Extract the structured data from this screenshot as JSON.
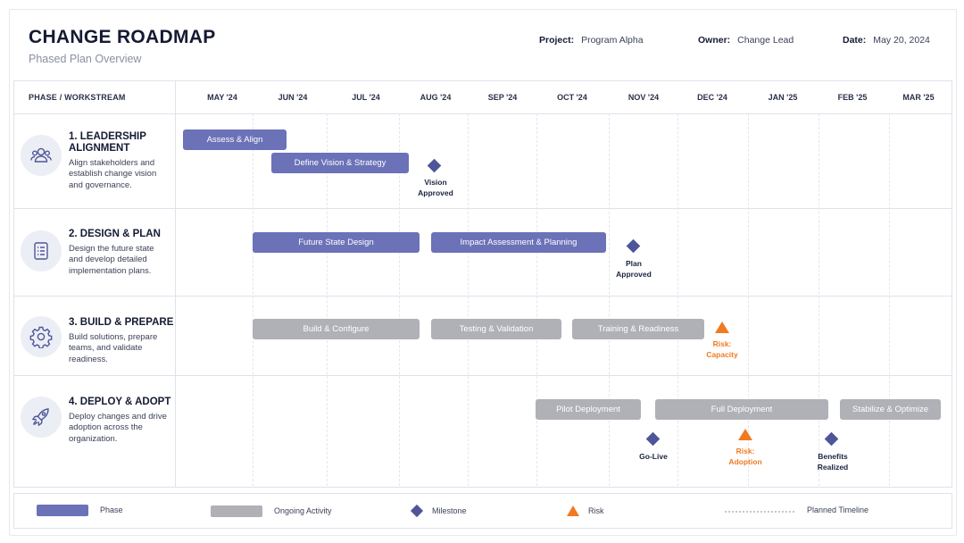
{
  "header": {
    "title": "CHANGE ROADMAP",
    "subtitle": "Phased Plan Overview",
    "project_label": "Project:",
    "project_value": "Program Alpha",
    "owner_label": "Owner:",
    "owner_value": "Change Lead",
    "date_label": "Date:",
    "date_value": "May 20, 2024"
  },
  "table": {
    "phase_header": "PHASE / WORKSTREAM",
    "months": [
      "MAY '24",
      "JUN '24",
      "JUL '24",
      "AUG '24",
      "SEP '24",
      "OCT '24",
      "NOV '24",
      "DEC '24",
      "JAN '25",
      "FEB '25",
      "MAR '25"
    ]
  },
  "phases": [
    {
      "title_line1": "1. LEADERSHIP",
      "title_line2": "ALIGNMENT",
      "desc": "Align stakeholders and establish change vision and governance.",
      "icon": "people-icon"
    },
    {
      "title_line1": "2. DESIGN & PLAN",
      "title_line2": "",
      "desc": "Design the future state and develop detailed implementation plans.",
      "icon": "checklist-icon"
    },
    {
      "title_line1": "3. BUILD & PREPARE",
      "title_line2": "",
      "desc": "Build solutions, prepare teams, and validate readiness.",
      "icon": "gear-icon"
    },
    {
      "title_line1": "4. DEPLOY & ADOPT",
      "title_line2": "",
      "desc": "Deploy changes and drive adoption across the organization.",
      "icon": "rocket-icon"
    }
  ],
  "activities": [
    {
      "label": "Assess & Align",
      "type": "phase",
      "phase": 1
    },
    {
      "label": "Define Vision & Strategy",
      "type": "phase",
      "phase": 1
    },
    {
      "label": "Future State Design",
      "type": "phase",
      "phase": 2
    },
    {
      "label": "Impact Assessment & Planning",
      "type": "phase",
      "phase": 2
    },
    {
      "label": "Build & Configure",
      "type": "ongoing",
      "phase": 3
    },
    {
      "label": "Testing & Validation",
      "type": "ongoing",
      "phase": 3
    },
    {
      "label": "Training & Readiness",
      "type": "ongoing",
      "phase": 3
    },
    {
      "label": "Pilot Deployment",
      "type": "ongoing",
      "phase": 4
    },
    {
      "label": "Full Deployment",
      "type": "ongoing",
      "phase": 4
    },
    {
      "label": "Stabilize & Optimize",
      "type": "ongoing",
      "phase": 4
    }
  ],
  "milestones": [
    {
      "line1": "Vision",
      "line2": "Approved"
    },
    {
      "line1": "Plan",
      "line2": "Approved"
    },
    {
      "line1": "Go-Live",
      "line2": ""
    },
    {
      "line1": "Benefits",
      "line2": "Realized"
    }
  ],
  "risks": [
    {
      "line1": "Risk:",
      "line2": "Capacity"
    },
    {
      "line1": "Risk:",
      "line2": "Adoption"
    }
  ],
  "legend": {
    "phase": "Phase",
    "ongoing": "Ongoing Activity",
    "milestone": "Milestone",
    "risk": "Risk",
    "planned": "Planned Timeline"
  },
  "colors": {
    "phase": "#6b72b8",
    "ongoing": "#b0b1b6",
    "milestone": "#4e5699",
    "risk": "#f07a22"
  }
}
